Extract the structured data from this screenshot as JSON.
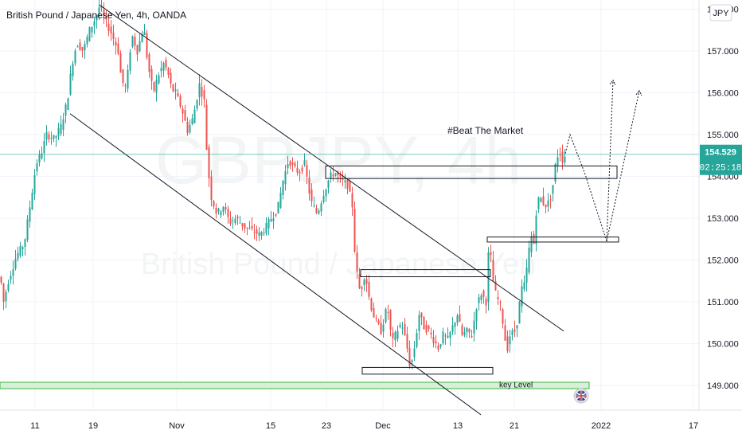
{
  "header": {
    "title": "British Pound / Japanese Yen, 4h, OANDA",
    "currency_badge": "JPY"
  },
  "watermark": {
    "symbol": "GBPJPY, 4h",
    "name": "British Pound / Japanese Yen"
  },
  "annotations": {
    "beat_market": "#Beat The Market",
    "key_level": "key Level"
  },
  "price_label": {
    "value": "154.529",
    "countdown": "02:25:18"
  },
  "colors": {
    "up": "#26a69a",
    "down": "#ef5350",
    "current_line": "#26a69a",
    "key_level_fill": "#d8f0d8",
    "key_level_border": "#3fb33f",
    "grid": "#f0f3fa",
    "axis_text": "#131722"
  },
  "chart_data": {
    "type": "candlestick",
    "title": "British Pound / Japanese Yen, 4h, OANDA",
    "xlabel": "",
    "ylabel": "",
    "ylim": [
      148.3,
      158.3
    ],
    "y_ticks": [
      "149.000",
      "150.000",
      "151.000",
      "152.000",
      "153.000",
      "154.000",
      "155.000",
      "156.000",
      "157.000",
      "158.000"
    ],
    "x_tick_labels": [
      "11",
      "19",
      "Nov",
      "15",
      "23",
      "Dec",
      "13",
      "21",
      "2022",
      "17"
    ],
    "current_price": 154.529,
    "key_level": 149.0,
    "price_path": [
      [
        0,
        151.6
      ],
      [
        4,
        151.0
      ],
      [
        10,
        151.5
      ],
      [
        20,
        152.1
      ],
      [
        30,
        152.4
      ],
      [
        38,
        153.4
      ],
      [
        45,
        154.3
      ],
      [
        52,
        154.6
      ],
      [
        58,
        155.0
      ],
      [
        68,
        154.9
      ],
      [
        76,
        155.2
      ],
      [
        84,
        155.8
      ],
      [
        90,
        156.7
      ],
      [
        96,
        157.2
      ],
      [
        104,
        157.0
      ],
      [
        112,
        157.5
      ],
      [
        120,
        157.8
      ],
      [
        125,
        158.1
      ],
      [
        132,
        157.7
      ],
      [
        140,
        157.4
      ],
      [
        148,
        157.0
      ],
      [
        152,
        156.3
      ],
      [
        158,
        156.1
      ],
      [
        165,
        157.4
      ],
      [
        172,
        157.0
      ],
      [
        180,
        157.6
      ],
      [
        185,
        156.7
      ],
      [
        192,
        156.0
      ],
      [
        198,
        156.4
      ],
      [
        205,
        156.7
      ],
      [
        210,
        156.5
      ],
      [
        215,
        156.1
      ],
      [
        220,
        156.0
      ],
      [
        228,
        155.6
      ],
      [
        235,
        155.1
      ],
      [
        242,
        155.4
      ],
      [
        250,
        156.2
      ],
      [
        256,
        155.8
      ],
      [
        260,
        154.3
      ],
      [
        265,
        153.5
      ],
      [
        272,
        153.1
      ],
      [
        280,
        153.3
      ],
      [
        288,
        152.9
      ],
      [
        296,
        153.0
      ],
      [
        306,
        152.8
      ],
      [
        316,
        152.7
      ],
      [
        326,
        152.6
      ],
      [
        334,
        152.8
      ],
      [
        340,
        153.0
      ],
      [
        348,
        153.2
      ],
      [
        355,
        153.9
      ],
      [
        362,
        154.4
      ],
      [
        368,
        154.2
      ],
      [
        375,
        154.1
      ],
      [
        382,
        154.3
      ],
      [
        390,
        153.4
      ],
      [
        398,
        153.1
      ],
      [
        406,
        153.6
      ],
      [
        414,
        154.0
      ],
      [
        420,
        154.1
      ],
      [
        428,
        153.9
      ],
      [
        436,
        153.8
      ],
      [
        442,
        153.3
      ],
      [
        446,
        151.9
      ],
      [
        452,
        151.2
      ],
      [
        458,
        151.7
      ],
      [
        464,
        151.0
      ],
      [
        470,
        150.6
      ],
      [
        478,
        150.3
      ],
      [
        486,
        150.9
      ],
      [
        492,
        150.0
      ],
      [
        498,
        150.3
      ],
      [
        504,
        150.5
      ],
      [
        510,
        150.0
      ],
      [
        515,
        149.4
      ],
      [
        520,
        149.9
      ],
      [
        526,
        150.7
      ],
      [
        532,
        150.4
      ],
      [
        538,
        150.3
      ],
      [
        544,
        150.1
      ],
      [
        550,
        149.9
      ],
      [
        556,
        150.2
      ],
      [
        562,
        150.1
      ],
      [
        568,
        150.4
      ],
      [
        574,
        150.7
      ],
      [
        580,
        150.2
      ],
      [
        586,
        150.3
      ],
      [
        592,
        150.2
      ],
      [
        598,
        150.9
      ],
      [
        604,
        151.2
      ],
      [
        610,
        151.0
      ],
      [
        614,
        152.5
      ],
      [
        618,
        151.6
      ],
      [
        622,
        151.2
      ],
      [
        628,
        150.9
      ],
      [
        632,
        150.4
      ],
      [
        636,
        149.8
      ],
      [
        640,
        150.2
      ],
      [
        646,
        150.3
      ],
      [
        650,
        150.6
      ],
      [
        654,
        151.3
      ],
      [
        658,
        151.4
      ],
      [
        662,
        151.9
      ],
      [
        666,
        152.6
      ],
      [
        670,
        152.4
      ],
      [
        674,
        153.4
      ],
      [
        678,
        153.5
      ],
      [
        684,
        153.3
      ],
      [
        690,
        153.4
      ],
      [
        694,
        153.8
      ],
      [
        698,
        154.4
      ],
      [
        702,
        154.6
      ],
      [
        706,
        154.4
      ],
      [
        710,
        154.529
      ]
    ],
    "drawings": {
      "channel_upper": [
        [
          125,
          158.1
        ],
        [
          708,
          150.3
        ]
      ],
      "channel_lower": [
        [
          88,
          155.5
        ],
        [
          604,
          148.3
        ]
      ],
      "zones": [
        {
          "x0": 409,
          "x1": 775,
          "top": 154.25,
          "bottom": 153.95
        },
        {
          "x0": 612,
          "x1": 777,
          "top": 152.55,
          "bottom": 152.43
        },
        {
          "x0": 453,
          "x1": 616,
          "top": 151.77,
          "bottom": 151.6
        },
        {
          "x0": 455,
          "x1": 619,
          "top": 149.43,
          "bottom": 149.27
        }
      ],
      "projection_1": [
        [
          710,
          154.55
        ],
        [
          716,
          155.0
        ],
        [
          735,
          154.05
        ],
        [
          762,
          152.45
        ],
        [
          770,
          156.3
        ]
      ],
      "projection_2": [
        [
          762,
          152.45
        ],
        [
          803,
          156.05
        ]
      ]
    }
  }
}
